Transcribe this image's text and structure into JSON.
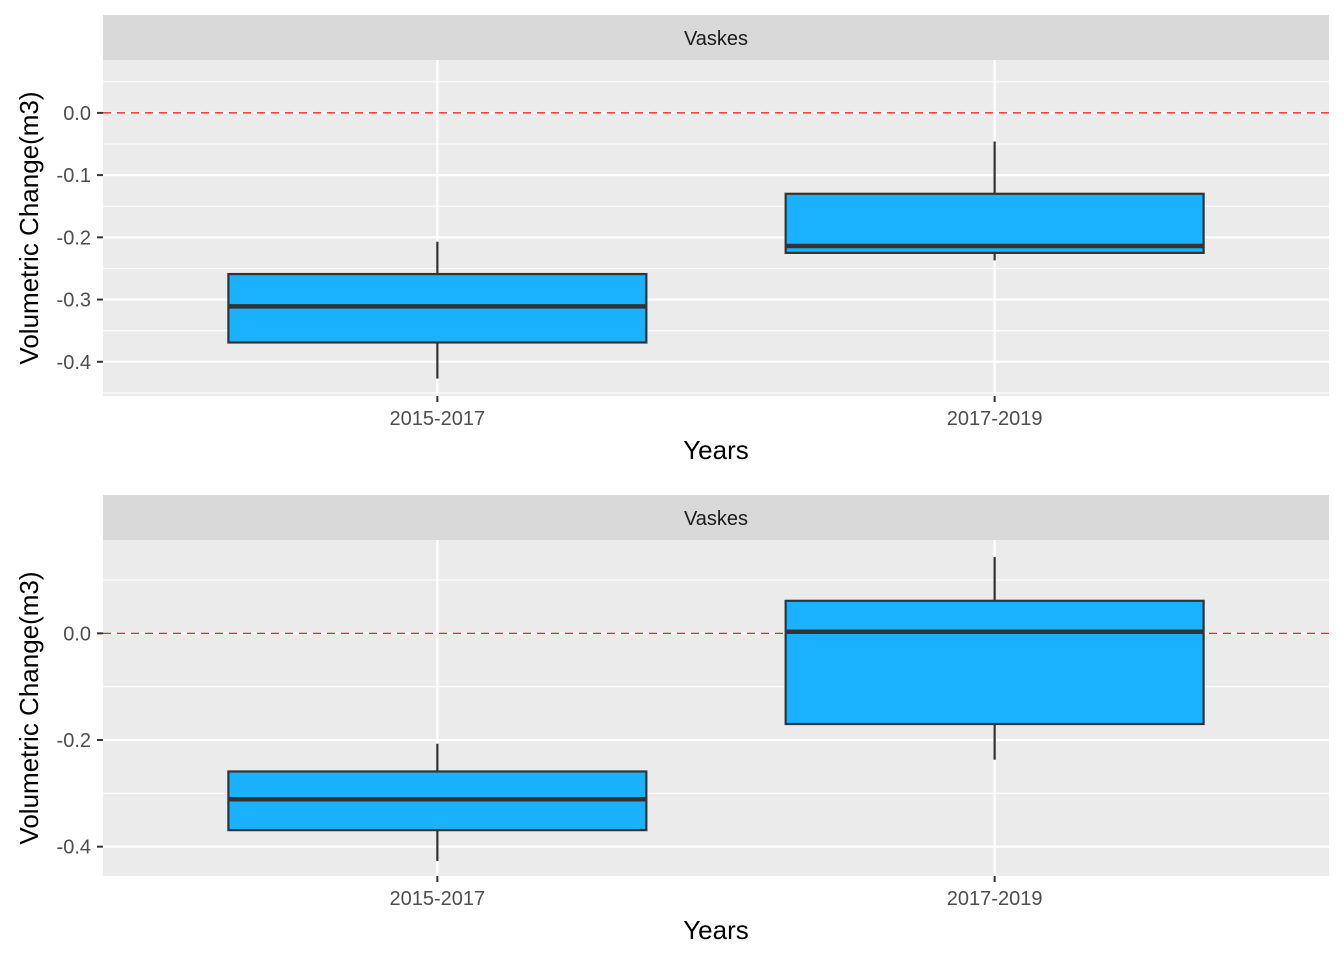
{
  "chart_data": [
    {
      "type": "box",
      "facet_label": "Vaskes",
      "xlabel": "Years",
      "ylabel": "Volumetric Change(m3)",
      "categories": [
        "2015-2017",
        "2017-2019"
      ],
      "ylim": [
        -0.455,
        0.085
      ],
      "yticks": [
        0.0,
        -0.1,
        -0.2,
        -0.3,
        -0.4
      ],
      "ytick_labels": [
        "0.0",
        "-0.1",
        "-0.2",
        "-0.3",
        "-0.4"
      ],
      "reference_line": 0.0,
      "boxes": [
        {
          "category": "2015-2017",
          "whisker_low": -0.427,
          "q1": -0.369,
          "median": -0.311,
          "q3": -0.259,
          "whisker_high": -0.207
        },
        {
          "category": "2017-2019",
          "whisker_low": -0.237,
          "q1": -0.225,
          "median": -0.214,
          "q3": -0.13,
          "whisker_high": -0.046
        }
      ],
      "grid": true
    },
    {
      "type": "box",
      "facet_label": "Vaskes",
      "xlabel": "Years",
      "ylabel": "Volumetric Change(m3)",
      "categories": [
        "2015-2017",
        "2017-2019"
      ],
      "ylim": [
        -0.455,
        0.175
      ],
      "yticks": [
        0.0,
        -0.2,
        -0.4
      ],
      "ytick_labels": [
        "0.0",
        "-0.2",
        "-0.4"
      ],
      "reference_line": 0.0,
      "boxes": [
        {
          "category": "2015-2017",
          "whisker_low": -0.427,
          "q1": -0.369,
          "median": -0.311,
          "q3": -0.259,
          "whisker_high": -0.207
        },
        {
          "category": "2017-2019",
          "whisker_low": -0.237,
          "q1": -0.17,
          "median": 0.003,
          "q3": 0.061,
          "whisker_high": 0.143
        }
      ],
      "grid": true
    }
  ],
  "colors": {
    "box_fill": "#1AB2FF",
    "box_outline": "#333333",
    "panel_bg": "#EBEBEB",
    "strip_bg": "#D9D9D9",
    "grid": "#FFFFFF",
    "reference_line": "#FF0000"
  }
}
